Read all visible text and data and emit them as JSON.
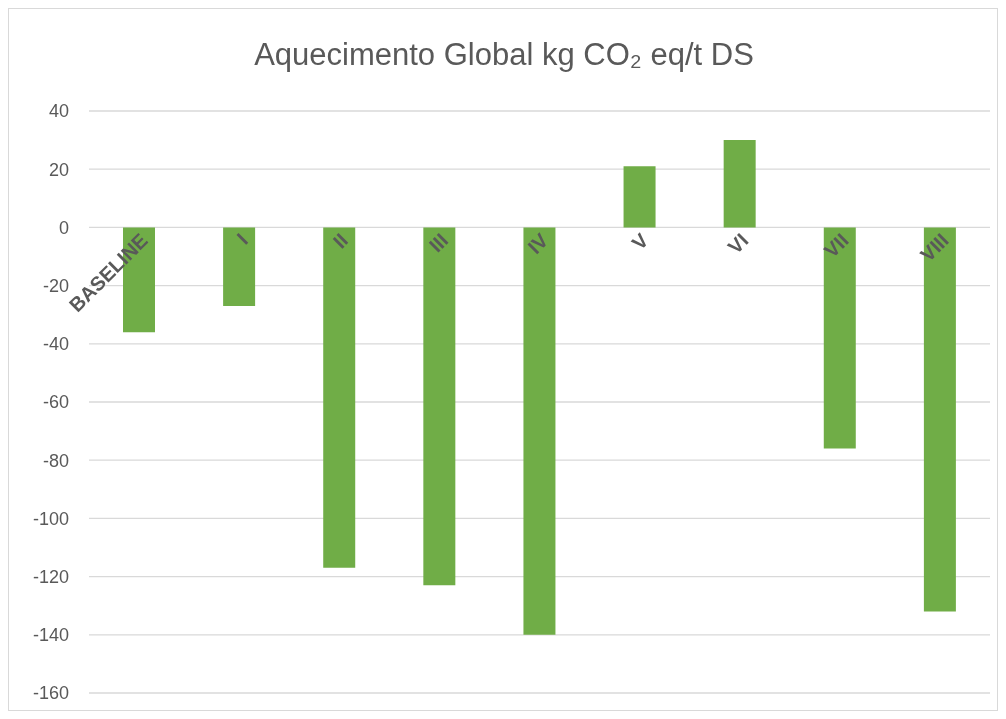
{
  "chart_data": {
    "type": "bar",
    "title": "Aquecimento Global kg CO₂ eq/t DS",
    "categories": [
      "BASELINE",
      "I",
      "II",
      "III",
      "IV",
      "V",
      "VI",
      "VII",
      "VIII"
    ],
    "values": [
      -36,
      -27,
      -117,
      -123,
      -140,
      21,
      30,
      -76,
      -132
    ],
    "color": "#70ad47",
    "ylim": [
      -160,
      40
    ],
    "yticks": [
      -160,
      -140,
      -120,
      -100,
      -80,
      -60,
      -40,
      -20,
      0,
      20,
      40
    ],
    "grid": "y",
    "legend": false
  }
}
